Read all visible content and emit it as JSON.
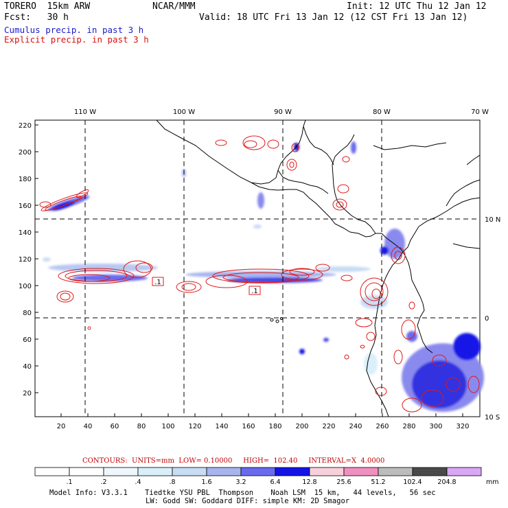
{
  "header": {
    "model": "TORERO  15km ARW",
    "org": "NCAR/MMM",
    "init": "Init: 12 UTC Thu 12 Jan 12",
    "fcst": "Fcst:   30 h",
    "valid": "Valid: 18 UTC Fri 13 Jan 12 (12 CST Fri 13 Jan 12)",
    "field1": "Cumulus precip. in past 3 h",
    "field2": "Explicit precip. in past 3 h"
  },
  "map": {
    "top_lon_labels": [
      "110 W",
      "100 W",
      "90 W",
      "80 W",
      "70 W"
    ],
    "right_lat_labels": [
      "10 N",
      "0",
      "10 S"
    ],
    "y_ticks": [
      "220",
      "200",
      "180",
      "160",
      "140",
      "120",
      "100",
      "80",
      "60",
      "40",
      "20"
    ],
    "x_ticks": [
      "20",
      "40",
      "60",
      "80",
      "100",
      "120",
      "140",
      "160",
      "180",
      "200",
      "220",
      "240",
      "260",
      "280",
      "300",
      "320"
    ],
    "min_labels": [
      ".1",
      ".1"
    ],
    "colors": {
      "contour": "#e01818",
      "coast": "#000000",
      "grid": "#000000"
    }
  },
  "contours_info": {
    "label": "CONTOURS:  UNITS=mm  LOW= 0.10000",
    "high": "HIGH=  102.40",
    "interval": "INTERVAL=X  4.0000"
  },
  "colorbar": {
    "unit": "mm",
    "labels": [
      ".1",
      ".2",
      ".4",
      ".8",
      "1.6",
      "3.2",
      "6.4",
      "12.8",
      "25.6",
      "51.2",
      "102.4",
      "204.8"
    ],
    "colors": [
      "#ffffff",
      "#ffffff",
      "#eef7fb",
      "#d9effa",
      "#c8dcf4",
      "#a8b4ee",
      "#6a6aee",
      "#1414e6",
      "#f8d0dc",
      "#f090c0",
      "#bcbcbc",
      "#4a4a4a",
      "#d8a8f4"
    ]
  },
  "footer": {
    "line1": "Model Info: V3.3.1    Tiedtke YSU PBL  Thompson    Noah LSM  15 km,   44 levels,   56 sec",
    "line2": "LW: Godd SW: Goddard DIFF: simple KM: 2D Smagor"
  }
}
